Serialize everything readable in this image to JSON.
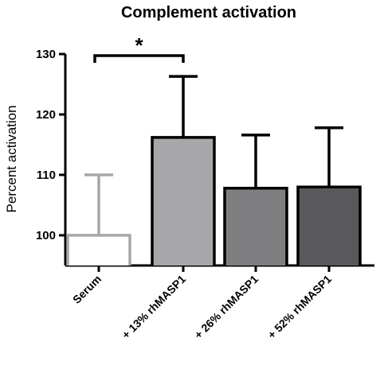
{
  "chart_data": {
    "type": "bar",
    "title": "Complement activation",
    "xlabel": "",
    "ylabel": "Percent activation",
    "categories": [
      "Serum",
      "+ 13% rhMASP1",
      "+ 26% rhMASP1",
      "+ 52% rhMASP1"
    ],
    "values": [
      100,
      116.2,
      107.8,
      108.0
    ],
    "error_upper": [
      110.0,
      126.3,
      116.6,
      117.8
    ],
    "bar_fills": [
      "#ffffff",
      "#a7a7a9",
      "#7f7f81",
      "#59595b"
    ],
    "bar_strokes": [
      "#a7a7a9",
      "#000000",
      "#000000",
      "#000000"
    ],
    "yticks": [
      100,
      110,
      120,
      130
    ],
    "ylim": [
      95,
      130
    ],
    "grid": false,
    "legend": "none",
    "annotations": [
      {
        "text": "*",
        "from_category": "Serum",
        "to_category": "+ 13% rhMASP1",
        "type": "significance-bracket"
      }
    ]
  }
}
